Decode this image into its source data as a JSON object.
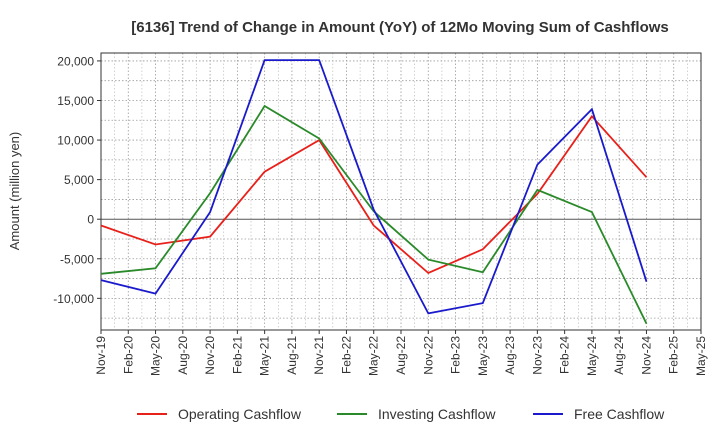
{
  "chart_data": {
    "type": "line",
    "title": "[6136]  Trend of Change in Amount (YoY) of 12Mo Moving Sum of Cashflows",
    "xlabel": "",
    "ylabel": "Amount (million yen)",
    "ylim": [
      -14000,
      21000
    ],
    "yticks": [
      -10000,
      -5000,
      0,
      5000,
      10000,
      15000,
      20000
    ],
    "ytick_labels": [
      "-10,000",
      "-5,000",
      "0",
      "5,000",
      "10,000",
      "15,000",
      "20,000"
    ],
    "categories": [
      "Nov-19",
      "Feb-20",
      "May-20",
      "Aug-20",
      "Nov-20",
      "Feb-21",
      "May-21",
      "Aug-21",
      "Nov-21",
      "Feb-22",
      "May-22",
      "Aug-22",
      "Nov-22",
      "Feb-23",
      "May-23",
      "Aug-23",
      "Nov-23",
      "Feb-24",
      "May-24",
      "Aug-24",
      "Nov-24",
      "Feb-25",
      "May-25"
    ],
    "grid": true,
    "legend_position": "bottom",
    "series": [
      {
        "name": "Operating Cashflow",
        "color": "#e8201a",
        "values": [
          -800,
          null,
          -3200,
          null,
          -2200,
          null,
          6000,
          null,
          10000,
          null,
          -800,
          null,
          -6800,
          null,
          -3800,
          null,
          3200,
          null,
          13000,
          null,
          5300,
          null,
          null
        ]
      },
      {
        "name": "Investing Cashflow",
        "color": "#2a8a2a",
        "values": [
          -6900,
          null,
          -6200,
          null,
          3300,
          null,
          14300,
          null,
          10200,
          null,
          1000,
          null,
          -5100,
          null,
          -6700,
          null,
          3700,
          null,
          900,
          null,
          -13200,
          null,
          null
        ]
      },
      {
        "name": "Free Cashflow",
        "color": "#1a1acc",
        "values": [
          -7700,
          null,
          -9400,
          null,
          900,
          null,
          20100,
          null,
          20100,
          null,
          1200,
          null,
          -11900,
          null,
          -10600,
          null,
          6900,
          null,
          13900,
          null,
          -7900,
          null,
          null
        ]
      }
    ]
  }
}
